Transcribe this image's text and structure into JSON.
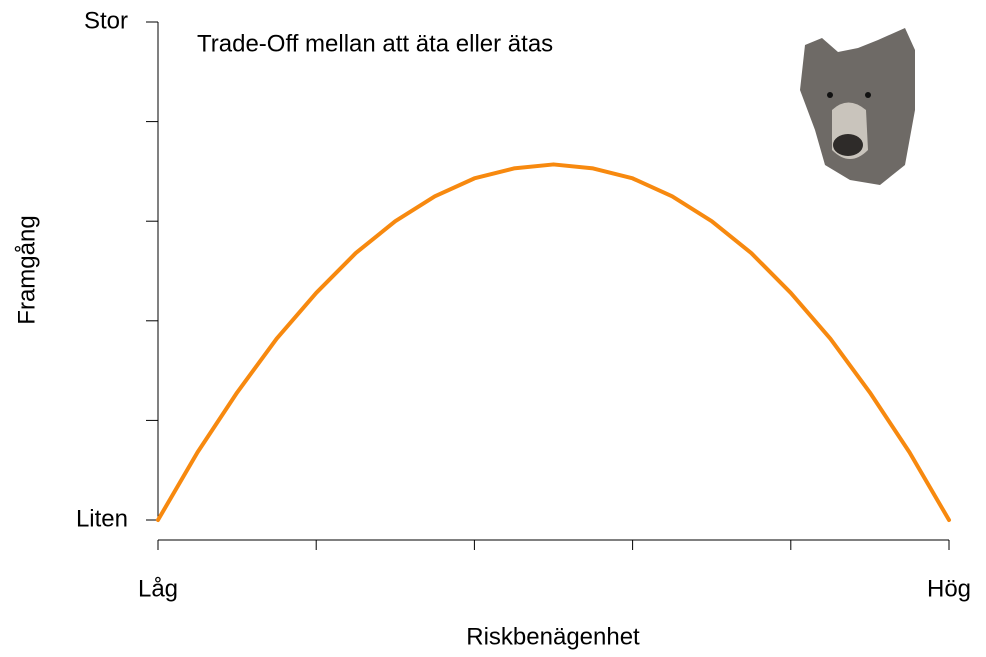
{
  "chart_data": {
    "type": "line",
    "title": "Trade-Off mellan att äta eller ätas",
    "x_label": "Riskbenägenhet",
    "y_label": "Framgång",
    "x": [
      0,
      0.25,
      0.5,
      0.75,
      1,
      1.25,
      1.5,
      1.75,
      2,
      2.25,
      2.5,
      2.75,
      3,
      3.25,
      3.5,
      3.75,
      4,
      4.25,
      4.5,
      4.75,
      5
    ],
    "series": [
      {
        "color": "#f7890f",
        "values": [
          0,
          0.68,
          1.28,
          1.82,
          2.28,
          2.68,
          3.0,
          3.25,
          3.43,
          3.53,
          3.57,
          3.53,
          3.43,
          3.25,
          3.0,
          2.68,
          2.28,
          1.82,
          1.28,
          0.68,
          0
        ]
      }
    ],
    "xlim": [
      0,
      5
    ],
    "ylim": [
      0,
      5
    ],
    "xticks": [
      {
        "value": 0,
        "label": "Låg"
      },
      {
        "value": 1,
        "label": null
      },
      {
        "value": 2,
        "label": null
      },
      {
        "value": 3,
        "label": null
      },
      {
        "value": 4,
        "label": null
      },
      {
        "value": 5,
        "label": "Hög"
      }
    ],
    "yticks": [
      {
        "value": 0,
        "label": "Liten"
      },
      {
        "value": 1,
        "label": null
      },
      {
        "value": 2,
        "label": null
      },
      {
        "value": 3,
        "label": null
      },
      {
        "value": 4,
        "label": null
      },
      {
        "value": 5,
        "label": "Stor"
      }
    ]
  }
}
